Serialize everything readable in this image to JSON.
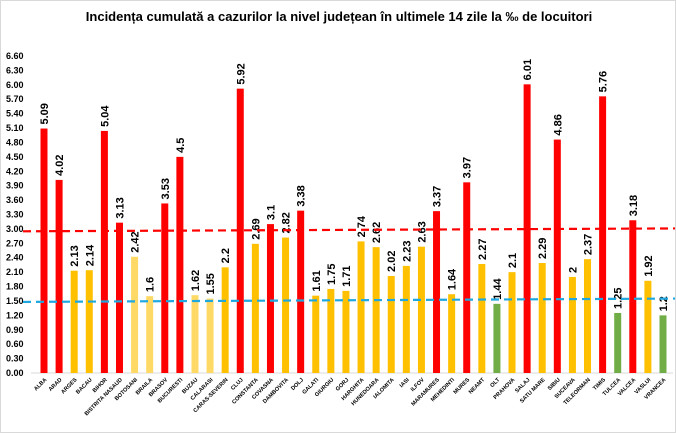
{
  "chart_data": {
    "type": "bar",
    "title": "Incidența cumulată a cazurilor la nivel județean în ultimele 14 zile la ‰ de locuitori",
    "xlabel": "",
    "ylabel": "",
    "ylim": [
      0,
      6.6
    ],
    "yticks": [
      "0.00",
      "0.30",
      "0.60",
      "0.90",
      "1.20",
      "1.50",
      "1.80",
      "2.10",
      "2.40",
      "2.70",
      "3.00",
      "3.30",
      "3.60",
      "3.90",
      "4.20",
      "4.50",
      "4.80",
      "5.10",
      "5.40",
      "5.70",
      "6.00",
      "6.30",
      "6.60"
    ],
    "grid": false,
    "legend": "none",
    "colors": {
      "red": "#FF0000",
      "yellow": "#FFC000",
      "light_yellow": "#FFD966",
      "green": "#70AD47",
      "red_line": "#FF0000",
      "blue_line": "#1FA8E0"
    },
    "categories": [
      "ALBA",
      "ARAD",
      "ARGES",
      "BACAU",
      "BIHOR",
      "BISTRITA NASAUD",
      "BOTOSANI",
      "BRAILA",
      "BRASOV",
      "BUCURESTI",
      "BUZAU",
      "CALARASI",
      "CARAS-SEVERIN",
      "CLUJ",
      "CONSTANTA",
      "COVASNA",
      "DAMBOVITA",
      "DOLJ",
      "GALATI",
      "GIURGIU",
      "GORJ",
      "HARGHITA",
      "HUNEDOARA",
      "IALOMITA",
      "IASI",
      "ILFOV",
      "MARAMURES",
      "MEHEDINTI",
      "MURES",
      "NEAMT",
      "OLT",
      "PRAHOVA",
      "SALAJ",
      "SATU MARE",
      "SIBIU",
      "SUCEAVA",
      "TELEORMAN",
      "TIMIS",
      "TULCEA",
      "VALCEA",
      "VASLUI",
      "VRANCEA"
    ],
    "values": [
      5.09,
      4.02,
      2.13,
      2.14,
      5.04,
      3.13,
      2.42,
      1.6,
      3.53,
      4.5,
      1.62,
      1.55,
      2.2,
      5.92,
      2.69,
      3.1,
      2.82,
      3.38,
      1.61,
      1.75,
      1.71,
      2.74,
      2.62,
      2.02,
      2.23,
      2.63,
      3.37,
      1.64,
      3.97,
      2.27,
      1.44,
      2.1,
      6.01,
      2.29,
      4.86,
      2,
      2.37,
      5.76,
      1.25,
      3.18,
      1.92,
      1.2
    ],
    "data_labels": [
      "5.09",
      "4.02",
      "2.13",
      "2.14",
      "5.04",
      "3.13",
      "2.42",
      "1.6",
      "3.53",
      "4.5",
      "1.62",
      "1.55",
      "2.2",
      "5.92",
      "2.69",
      "3.1",
      "2.82",
      "3.38",
      "1.61",
      "1.75",
      "1.71",
      "2.74",
      "2.62",
      "2.02",
      "2.23",
      "2.63",
      "3.37",
      "1.64",
      "3.97",
      "2.27",
      "1.44",
      "2.1",
      "6.01",
      "2.29",
      "4.86",
      "2",
      "2.37",
      "5.76",
      "1.25",
      "3.18",
      "1.92",
      "1.2"
    ],
    "bar_colors": [
      "red",
      "red",
      "yellow",
      "yellow",
      "red",
      "red",
      "light_yellow",
      "light_yellow",
      "red",
      "red",
      "light_yellow",
      "light_yellow",
      "yellow",
      "red",
      "yellow",
      "red",
      "yellow",
      "red",
      "yellow",
      "yellow",
      "yellow",
      "yellow",
      "yellow",
      "yellow",
      "yellow",
      "yellow",
      "red",
      "yellow",
      "red",
      "yellow",
      "green",
      "yellow",
      "red",
      "yellow",
      "red",
      "yellow",
      "yellow",
      "red",
      "green",
      "red",
      "yellow",
      "green"
    ],
    "reference_lines": [
      {
        "color": "red_line",
        "style": "dashed",
        "start_value": 2.95,
        "end_value": 3.01
      },
      {
        "color": "blue_line",
        "style": "dashed",
        "start_value": 1.48,
        "end_value": 1.55
      }
    ]
  }
}
